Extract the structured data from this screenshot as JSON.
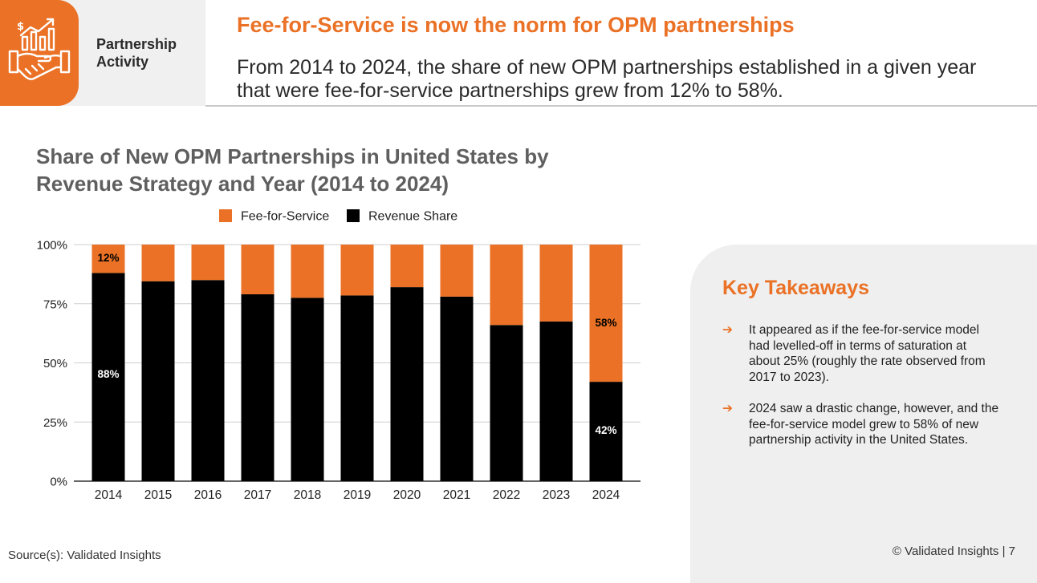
{
  "header": {
    "section_label": "Partnership Activity",
    "title": "Fee-for-Service is now the norm for OPM partnerships",
    "subtitle": "From 2014 to 2024, the share of new OPM partnerships established in a given year that were fee-for-service partnerships grew from 12% to 58%."
  },
  "chart_data": {
    "type": "bar",
    "stacked": true,
    "title": "Share of New OPM Partnerships in United States by Revenue Strategy and Year (2014 to 2024)",
    "categories": [
      "2014",
      "2015",
      "2016",
      "2017",
      "2018",
      "2019",
      "2020",
      "2021",
      "2022",
      "2023",
      "2024"
    ],
    "series": [
      {
        "name": "Revenue Share",
        "color": "#000000",
        "values": [
          88,
          84.5,
          85,
          79,
          77.5,
          78.5,
          82,
          78,
          66,
          67.5,
          42
        ]
      },
      {
        "name": "Fee-for-Service",
        "color": "#ea7125",
        "values": [
          12,
          15.5,
          15,
          21,
          22.5,
          21.5,
          18,
          22,
          34,
          32.5,
          58
        ]
      }
    ],
    "legend_order": [
      "Fee-for-Service",
      "Revenue Share"
    ],
    "legend_position": "top",
    "y_ticks": [
      "0%",
      "25%",
      "50%",
      "75%",
      "100%"
    ],
    "ylim": [
      0,
      100
    ],
    "xlabel": "",
    "ylabel": "",
    "data_labels": [
      {
        "category": "2014",
        "series": "Fee-for-Service",
        "text": "12%"
      },
      {
        "category": "2014",
        "series": "Revenue Share",
        "text": "88%"
      },
      {
        "category": "2024",
        "series": "Fee-for-Service",
        "text": "58%"
      },
      {
        "category": "2024",
        "series": "Revenue Share",
        "text": "42%"
      }
    ]
  },
  "takeaways": {
    "title": "Key Takeaways",
    "items": [
      "It appeared as if the fee-for-service model had levelled-off in terms of saturation at about 25% (roughly the rate observed from 2017 to 2023).",
      "2024 saw a drastic change, however, and the fee-for-service model grew to 58% of new partnership activity in the United States."
    ],
    "bullet_glyph": "➔"
  },
  "footer": {
    "source": "Source(s): Validated Insights",
    "copyright": "© Validated Insights | 7"
  },
  "colors": {
    "accent": "#ea7125",
    "revenue_share": "#000000"
  }
}
